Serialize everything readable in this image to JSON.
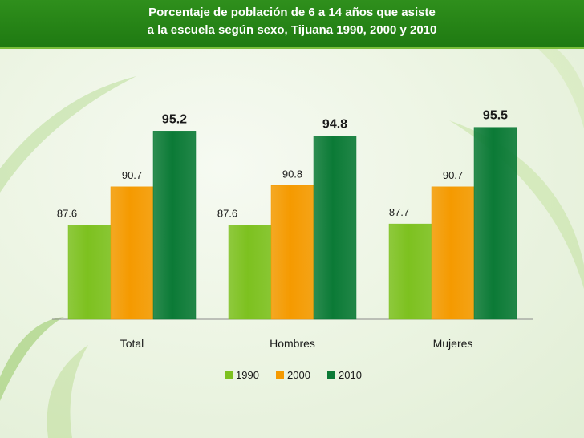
{
  "colors": {
    "header": "#2a8a18",
    "series_1990": "#7dc11f",
    "series_2000": "#f59a00",
    "series_2010": "#0b7a36"
  },
  "chart_data": {
    "type": "bar",
    "title_line1": "Porcentaje de población de 6 a 14 años que asiste",
    "title_line2": "a la escuela según sexo, Tijuana 1990, 2000 y 2010",
    "categories": [
      "Total",
      "Hombres",
      "Mujeres"
    ],
    "series": [
      {
        "name": "1990",
        "values": [
          87.6,
          87.6,
          87.7
        ],
        "labels": [
          "87.6",
          "87.6",
          "87.7"
        ]
      },
      {
        "name": "2000",
        "values": [
          90.7,
          90.8,
          90.7
        ],
        "labels": [
          "90.7",
          "90.8",
          "90.7"
        ]
      },
      {
        "name": "2010",
        "values": [
          95.2,
          94.8,
          95.5
        ],
        "labels": [
          "95.2",
          "94.8",
          "95.5"
        ]
      }
    ],
    "ylim": [
      80,
      96
    ],
    "grid": false,
    "legend_position": "bottom"
  }
}
